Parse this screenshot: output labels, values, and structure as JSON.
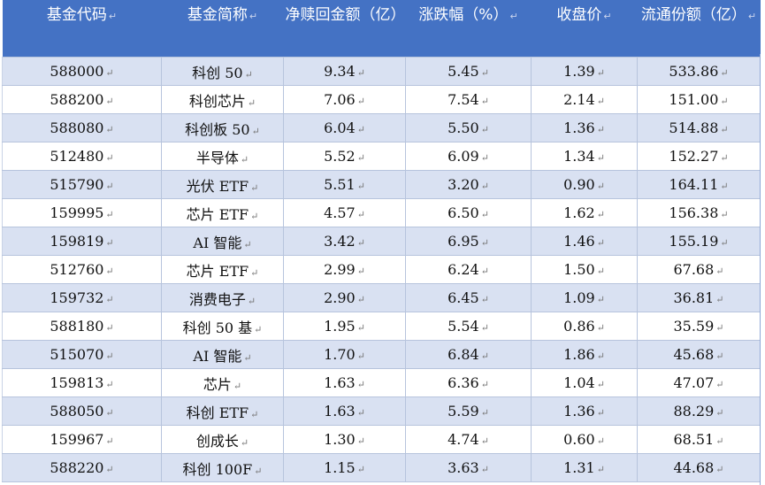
{
  "columns": [
    "基金代码",
    "基金简称",
    "净赎回金额（亿）",
    "涨跌幅（%）",
    "收盘价",
    "流通份额（亿）"
  ],
  "rows": [
    [
      "588000",
      "科创 50",
      "9.34",
      "5.45",
      "1.39",
      "533.86"
    ],
    [
      "588200",
      "科创芯片",
      "7.06",
      "7.54",
      "2.14",
      "151.00"
    ],
    [
      "588080",
      "科创板 50",
      "6.04",
      "5.50",
      "1.36",
      "514.88"
    ],
    [
      "512480",
      "半导体",
      "5.52",
      "6.09",
      "1.34",
      "152.27"
    ],
    [
      "515790",
      "光伏 ETF",
      "5.51",
      "3.20",
      "0.90",
      "164.11"
    ],
    [
      "159995",
      "芯片 ETF",
      "4.57",
      "6.50",
      "1.62",
      "156.38"
    ],
    [
      "159819",
      "AI 智能",
      "3.42",
      "6.95",
      "1.46",
      "155.19"
    ],
    [
      "512760",
      "芯片 ETF",
      "2.99",
      "6.24",
      "1.50",
      "67.68"
    ],
    [
      "159732",
      "消费电子",
      "2.90",
      "6.45",
      "1.09",
      "36.81"
    ],
    [
      "588180",
      "科创 50 基",
      "1.95",
      "5.54",
      "0.86",
      "35.59"
    ],
    [
      "515070",
      "AI 智能",
      "1.70",
      "6.84",
      "1.86",
      "45.68"
    ],
    [
      "159813",
      "芯片",
      "1.63",
      "6.36",
      "1.04",
      "47.07"
    ],
    [
      "588050",
      "科创 ETF",
      "1.63",
      "5.59",
      "1.36",
      "88.29"
    ],
    [
      "159967",
      "创成长",
      "1.30",
      "4.74",
      "0.60",
      "68.51"
    ],
    [
      "588220",
      "科创 100F",
      "1.15",
      "3.63",
      "1.31",
      "44.68"
    ]
  ],
  "colors": {
    "header_bg": "#4472c4",
    "band_bg": "#d9e1f2",
    "header_text": "#ffffff"
  }
}
